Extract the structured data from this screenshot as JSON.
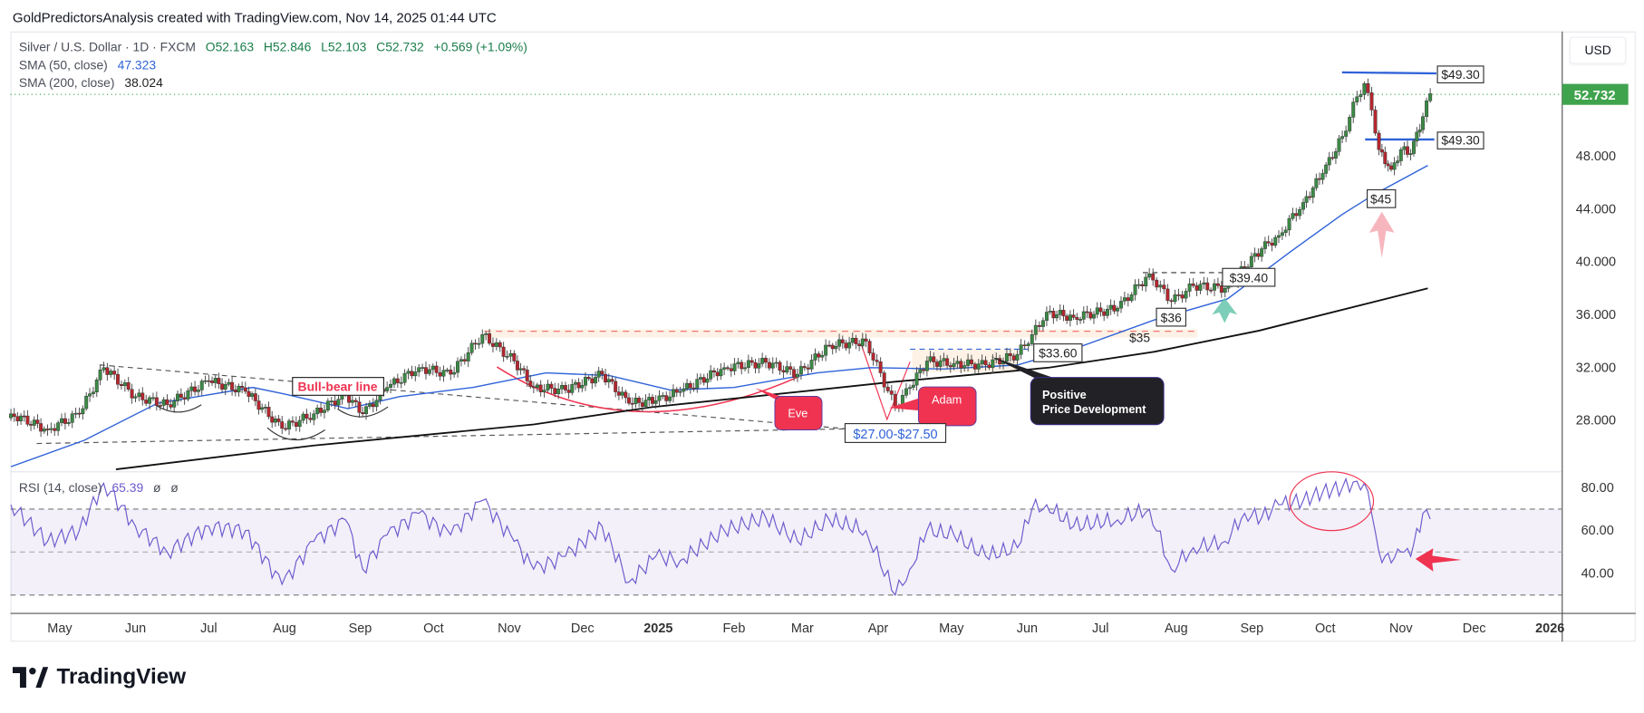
{
  "header": {
    "attribution": "GoldPredictorsAnalysis created with TradingView.com, Nov 14, 2025 01:44 UTC"
  },
  "legend": {
    "symbol_line": "Silver / U.S. Dollar · 1D · FXCM",
    "open": "O52.163",
    "high": "H52.846",
    "low": "L52.103",
    "close": "C52.732",
    "change": "+0.569 (+1.09%)",
    "sma50_label": "SMA (50, close)",
    "sma50_value": "47.323",
    "sma200_label": "SMA (200, close)",
    "sma200_value": "38.024",
    "rsi_label": "RSI (14, close)",
    "rsi_value": "65.39",
    "rsi_extra1": "ø",
    "rsi_extra2": "ø"
  },
  "currency": "USD",
  "last_price": "52.732",
  "colors": {
    "up": "#3b8a45",
    "down": "#b5272f",
    "sma50": "#2f62d8",
    "sma200": "#111111",
    "rsi": "#6a5acd",
    "last_price_bg": "#3fa34d",
    "annotation_red": "#ef3350",
    "annotation_dark": "#222226"
  },
  "logo": {
    "text": "TradingView"
  },
  "annotations": {
    "bull_bear": "Bull-bear line",
    "eve": "Eve",
    "adam": "Adam",
    "range_27": "$27.00-$27.50",
    "positive_line1": "Positive",
    "positive_line2": "Price Development",
    "l33": "$33.60",
    "l35": "$35",
    "l36": "$36",
    "l3940": "$39.40",
    "l4930_top": "$49.30",
    "l4930_mid": "$49.30",
    "l45": "$45"
  },
  "chart_data": {
    "type": "candlestick",
    "title": "Silver / U.S. Dollar · 1D · FXCM",
    "ylim": [
      24,
      56
    ],
    "price_ticks": [
      "48.000",
      "44.000",
      "40.000",
      "36.000",
      "32.000",
      "28.000"
    ],
    "price_tick_values": [
      48,
      44,
      40,
      36,
      32,
      28
    ],
    "rsi_ticks": [
      "80.00",
      "60.00",
      "40.00"
    ],
    "rsi_tick_values": [
      80,
      60,
      40
    ],
    "rsi_bands": [
      70,
      50,
      30
    ],
    "time_axis": [
      {
        "label": "May",
        "date": "2024-05-01"
      },
      {
        "label": "Jun",
        "date": "2024-06-01"
      },
      {
        "label": "Jul",
        "date": "2024-07-01"
      },
      {
        "label": "Aug",
        "date": "2024-08-01"
      },
      {
        "label": "Sep",
        "date": "2024-09-01"
      },
      {
        "label": "Oct",
        "date": "2024-10-01"
      },
      {
        "label": "Nov",
        "date": "2024-11-01"
      },
      {
        "label": "Dec",
        "date": "2024-12-01"
      },
      {
        "label": "2025",
        "date": "2025-01-01"
      },
      {
        "label": "Feb",
        "date": "2025-02-01"
      },
      {
        "label": "Mar",
        "date": "2025-03-01"
      },
      {
        "label": "Apr",
        "date": "2025-04-01"
      },
      {
        "label": "May",
        "date": "2025-05-01"
      },
      {
        "label": "Jun",
        "date": "2025-06-01"
      },
      {
        "label": "Jul",
        "date": "2025-07-01"
      },
      {
        "label": "Aug",
        "date": "2025-08-01"
      },
      {
        "label": "Sep",
        "date": "2025-09-01"
      },
      {
        "label": "Oct",
        "date": "2025-10-01"
      },
      {
        "label": "Nov",
        "date": "2025-11-01"
      },
      {
        "label": "Dec",
        "date": "2025-12-01"
      },
      {
        "label": "2026",
        "date": "2026-01-01"
      }
    ],
    "series": [
      {
        "date": "2024-04-11",
        "close": 28.5,
        "rsi": 72
      },
      {
        "date": "2024-04-26",
        "close": 27.3,
        "rsi": 55
      },
      {
        "date": "2024-05-09",
        "close": 28.5,
        "rsi": 60
      },
      {
        "date": "2024-05-19",
        "close": 32.0,
        "rsi": 82
      },
      {
        "date": "2024-06-01",
        "close": 29.8,
        "rsi": 62
      },
      {
        "date": "2024-06-14",
        "close": 29.2,
        "rsi": 50
      },
      {
        "date": "2024-07-01",
        "close": 31.0,
        "rsi": 62
      },
      {
        "date": "2024-07-16",
        "close": 30.2,
        "rsi": 60
      },
      {
        "date": "2024-07-31",
        "close": 27.4,
        "rsi": 35
      },
      {
        "date": "2024-08-13",
        "close": 28.5,
        "rsi": 55
      },
      {
        "date": "2024-08-26",
        "close": 30.0,
        "rsi": 65
      },
      {
        "date": "2024-09-02",
        "close": 28.5,
        "rsi": 42
      },
      {
        "date": "2024-09-12",
        "close": 30.5,
        "rsi": 58
      },
      {
        "date": "2024-09-25",
        "close": 32.0,
        "rsi": 68
      },
      {
        "date": "2024-10-08",
        "close": 31.5,
        "rsi": 58
      },
      {
        "date": "2024-10-21",
        "close": 34.5,
        "rsi": 74
      },
      {
        "date": "2024-11-03",
        "close": 32.5,
        "rsi": 55
      },
      {
        "date": "2024-11-11",
        "close": 30.5,
        "rsi": 42
      },
      {
        "date": "2024-11-24",
        "close": 30.3,
        "rsi": 48
      },
      {
        "date": "2024-12-09",
        "close": 31.5,
        "rsi": 62
      },
      {
        "date": "2024-12-20",
        "close": 29.3,
        "rsi": 36
      },
      {
        "date": "2024-12-31",
        "close": 29.5,
        "rsi": 48
      },
      {
        "date": "2025-01-10",
        "close": 30.2,
        "rsi": 46
      },
      {
        "date": "2025-01-28",
        "close": 32.0,
        "rsi": 60
      },
      {
        "date": "2025-02-14",
        "close": 32.4,
        "rsi": 66
      },
      {
        "date": "2025-02-27",
        "close": 31.5,
        "rsi": 55
      },
      {
        "date": "2025-03-12",
        "close": 33.7,
        "rsi": 65
      },
      {
        "date": "2025-03-27",
        "close": 34.0,
        "rsi": 60
      },
      {
        "date": "2025-04-08",
        "close": 29.0,
        "rsi": 30
      },
      {
        "date": "2025-04-14",
        "close": 30.5,
        "rsi": 42
      },
      {
        "date": "2025-04-21",
        "close": 32.5,
        "rsi": 60
      },
      {
        "date": "2025-05-02",
        "close": 32.3,
        "rsi": 58
      },
      {
        "date": "2025-05-15",
        "close": 32.2,
        "rsi": 48
      },
      {
        "date": "2025-05-28",
        "close": 33.0,
        "rsi": 52
      },
      {
        "date": "2025-06-03",
        "close": 34.5,
        "rsi": 70
      },
      {
        "date": "2025-06-09",
        "close": 36.2,
        "rsi": 72
      },
      {
        "date": "2025-06-20",
        "close": 35.8,
        "rsi": 62
      },
      {
        "date": "2025-07-08",
        "close": 36.5,
        "rsi": 65
      },
      {
        "date": "2025-07-21",
        "close": 39.1,
        "rsi": 70
      },
      {
        "date": "2025-07-30",
        "close": 37.0,
        "rsi": 42
      },
      {
        "date": "2025-08-08",
        "close": 38.2,
        "rsi": 52
      },
      {
        "date": "2025-08-21",
        "close": 38.0,
        "rsi": 55
      },
      {
        "date": "2025-08-29",
        "close": 39.6,
        "rsi": 68
      },
      {
        "date": "2025-09-05",
        "close": 41.0,
        "rsi": 66
      },
      {
        "date": "2025-09-12",
        "close": 42.0,
        "rsi": 72
      },
      {
        "date": "2025-09-22",
        "close": 44.5,
        "rsi": 74
      },
      {
        "date": "2025-09-30",
        "close": 46.7,
        "rsi": 78
      },
      {
        "date": "2025-10-08",
        "close": 49.5,
        "rsi": 80
      },
      {
        "date": "2025-10-14",
        "close": 52.5,
        "rsi": 83
      },
      {
        "date": "2025-10-17",
        "close": 53.5,
        "rsi": 82
      },
      {
        "date": "2025-10-20",
        "close": 51.5,
        "rsi": 68
      },
      {
        "date": "2025-10-23",
        "close": 48.5,
        "rsi": 50
      },
      {
        "date": "2025-10-28",
        "close": 47.0,
        "rsi": 45
      },
      {
        "date": "2025-11-01",
        "close": 48.5,
        "rsi": 50
      },
      {
        "date": "2025-11-05",
        "close": 48.2,
        "rsi": 48
      },
      {
        "date": "2025-11-10",
        "close": 51.0,
        "rsi": 68
      },
      {
        "date": "2025-11-13",
        "close": 52.732,
        "rsi": 65.39
      }
    ],
    "sma50": [
      {
        "date": "2024-04-11",
        "value": 24.5
      },
      {
        "date": "2024-05-11",
        "value": 26.5
      },
      {
        "date": "2024-06-10",
        "value": 29.3
      },
      {
        "date": "2024-07-19",
        "value": 30.5
      },
      {
        "date": "2024-08-01",
        "value": 30.0
      },
      {
        "date": "2024-08-27",
        "value": 28.9
      },
      {
        "date": "2024-09-17",
        "value": 29.8
      },
      {
        "date": "2024-10-17",
        "value": 30.5
      },
      {
        "date": "2024-11-16",
        "value": 31.6
      },
      {
        "date": "2024-12-12",
        "value": 31.4
      },
      {
        "date": "2025-01-06",
        "value": 30.3
      },
      {
        "date": "2025-02-01",
        "value": 30.5
      },
      {
        "date": "2025-03-07",
        "value": 31.6
      },
      {
        "date": "2025-03-29",
        "value": 32.0
      },
      {
        "date": "2025-04-28",
        "value": 31.9
      },
      {
        "date": "2025-05-28",
        "value": 32.2
      },
      {
        "date": "2025-06-23",
        "value": 33.6
      },
      {
        "date": "2025-07-23",
        "value": 35.6
      },
      {
        "date": "2025-08-22",
        "value": 37.2
      },
      {
        "date": "2025-09-17",
        "value": 40.8
      },
      {
        "date": "2025-10-08",
        "value": 43.6
      },
      {
        "date": "2025-10-21",
        "value": 45.1
      },
      {
        "date": "2025-11-12",
        "value": 47.3
      }
    ],
    "sma200": [
      {
        "date": "2024-05-24",
        "value": 24.3
      },
      {
        "date": "2024-08-13",
        "value": 26.1
      },
      {
        "date": "2024-11-11",
        "value": 27.7
      },
      {
        "date": "2024-12-29",
        "value": 29.0
      },
      {
        "date": "2025-04-06",
        "value": 30.9
      },
      {
        "date": "2025-06-10",
        "value": 32.0
      },
      {
        "date": "2025-07-23",
        "value": 33.2
      },
      {
        "date": "2025-09-04",
        "value": 34.8
      },
      {
        "date": "2025-11-12",
        "value": 38.0
      }
    ]
  }
}
